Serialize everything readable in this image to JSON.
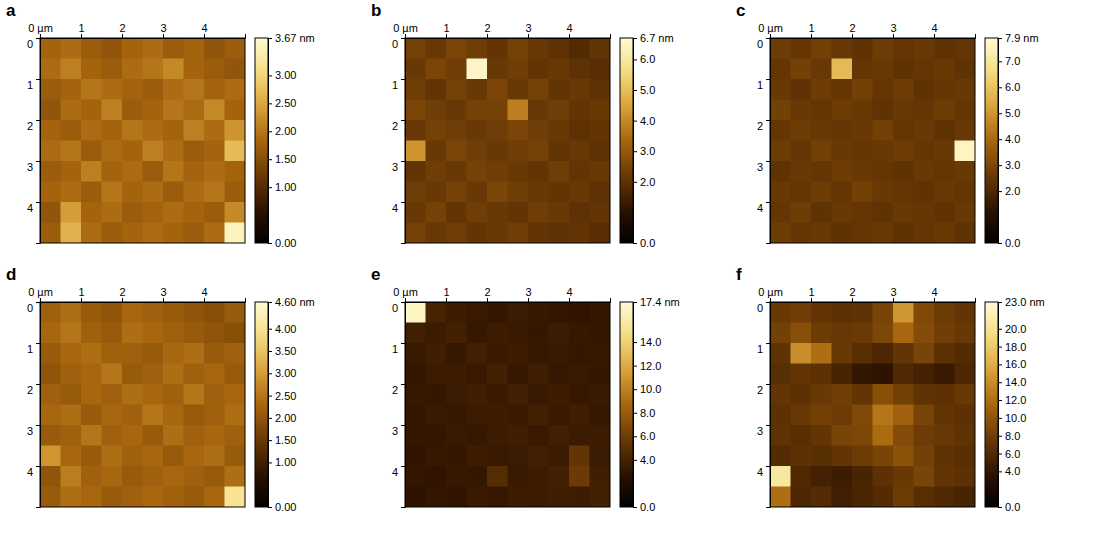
{
  "chart_data": [
    {
      "type": "heatmap",
      "title": "a",
      "xlim": [
        0,
        5
      ],
      "ylim": [
        0,
        5
      ],
      "xticks": [
        {
          "value": 0,
          "label": "0 µm"
        },
        1,
        2,
        3,
        4
      ],
      "yticks": [
        0,
        1,
        2,
        3,
        4
      ],
      "zlim": [
        0,
        3.67
      ],
      "zticks": [
        {
          "value": 0,
          "label": "0.00"
        },
        {
          "value": 1,
          "label": "1.00"
        },
        {
          "value": 1.5,
          "label": "1.50"
        },
        {
          "value": 2,
          "label": "2.00"
        },
        {
          "value": 2.5,
          "label": "2.50"
        },
        {
          "value": 3,
          "label": "3.00"
        },
        {
          "value": 3.67,
          "label": "3.67 nm"
        }
      ],
      "z": [
        [
          1.8,
          1.9,
          1.7,
          1.6,
          1.8,
          1.9,
          1.7,
          1.8,
          1.6,
          1.7
        ],
        [
          1.9,
          2.1,
          1.8,
          1.7,
          1.9,
          2.0,
          2.2,
          1.8,
          1.7,
          1.6
        ],
        [
          1.7,
          1.8,
          2.0,
          1.9,
          1.8,
          1.7,
          1.9,
          2.0,
          1.8,
          1.9
        ],
        [
          1.6,
          1.9,
          1.8,
          2.1,
          1.7,
          1.8,
          2.0,
          1.9,
          2.2,
          1.8
        ],
        [
          1.8,
          1.7,
          1.9,
          1.8,
          2.0,
          1.9,
          1.8,
          2.1,
          1.9,
          2.3
        ],
        [
          1.9,
          2.0,
          1.7,
          1.9,
          1.8,
          2.1,
          1.9,
          1.7,
          1.8,
          2.7
        ],
        [
          1.7,
          1.8,
          2.1,
          1.8,
          1.9,
          1.7,
          2.0,
          1.8,
          1.9,
          1.8
        ],
        [
          1.8,
          1.9,
          1.7,
          2.0,
          1.8,
          1.9,
          1.7,
          1.9,
          2.0,
          1.7
        ],
        [
          1.6,
          2.4,
          1.8,
          1.9,
          1.7,
          1.8,
          1.9,
          1.8,
          1.7,
          2.2
        ],
        [
          1.7,
          2.6,
          1.9,
          1.7,
          1.8,
          1.9,
          1.8,
          1.7,
          1.9,
          3.5
        ]
      ]
    },
    {
      "type": "heatmap",
      "title": "b",
      "xlim": [
        0,
        5
      ],
      "ylim": [
        0,
        5
      ],
      "xticks": [
        {
          "value": 0,
          "label": "0 µm"
        },
        1,
        2,
        3,
        4
      ],
      "yticks": [
        0,
        1,
        2,
        3,
        4
      ],
      "zlim": [
        0,
        6.7
      ],
      "zticks": [
        {
          "value": 0,
          "label": "0.0"
        },
        {
          "value": 2,
          "label": "2.0"
        },
        {
          "value": 3,
          "label": "3.0"
        },
        {
          "value": 4,
          "label": "4.0"
        },
        {
          "value": 5,
          "label": "5.0"
        },
        {
          "value": 6,
          "label": "6.0"
        },
        {
          "value": 6.7,
          "label": "6.7 nm"
        }
      ],
      "z": [
        [
          2.4,
          2.2,
          2.5,
          2.3,
          2.1,
          2.4,
          2.2,
          2.0,
          1.8,
          2.1
        ],
        [
          2.2,
          2.5,
          2.3,
          6.5,
          2.2,
          2.3,
          2.1,
          2.2,
          2.0,
          1.9
        ],
        [
          2.3,
          2.1,
          2.4,
          2.2,
          2.5,
          2.2,
          2.4,
          2.1,
          2.2,
          2.0
        ],
        [
          2.5,
          2.3,
          2.2,
          2.4,
          2.4,
          3.8,
          2.2,
          2.3,
          2.1,
          2.2
        ],
        [
          2.2,
          2.4,
          2.3,
          2.2,
          2.3,
          2.5,
          2.3,
          2.2,
          2.0,
          2.1
        ],
        [
          4.2,
          2.2,
          2.5,
          2.3,
          2.2,
          2.3,
          2.4,
          2.1,
          2.2,
          2.0
        ],
        [
          2.1,
          2.3,
          2.2,
          2.4,
          2.3,
          2.2,
          2.1,
          2.3,
          2.1,
          2.2
        ],
        [
          2.3,
          2.2,
          2.4,
          2.2,
          2.5,
          2.3,
          2.2,
          2.1,
          2.2,
          2.0
        ],
        [
          2.2,
          2.4,
          2.1,
          2.3,
          2.2,
          2.1,
          2.3,
          2.2,
          2.0,
          2.1
        ],
        [
          2.4,
          2.2,
          2.3,
          2.1,
          2.2,
          2.3,
          2.1,
          2.0,
          2.1,
          1.9
        ]
      ]
    },
    {
      "type": "heatmap",
      "title": "c",
      "xlim": [
        0,
        5
      ],
      "ylim": [
        0,
        5
      ],
      "xticks": [
        {
          "value": 0,
          "label": "0 µm"
        },
        1,
        2,
        3,
        4
      ],
      "yticks": [
        0,
        1,
        2,
        3,
        4
      ],
      "zlim": [
        0,
        7.9
      ],
      "zticks": [
        {
          "value": 0,
          "label": "0.0"
        },
        {
          "value": 2,
          "label": "2.0"
        },
        {
          "value": 3,
          "label": "3.0"
        },
        {
          "value": 4,
          "label": "4.0"
        },
        {
          "value": 5,
          "label": "5.0"
        },
        {
          "value": 6,
          "label": "6.0"
        },
        {
          "value": 7,
          "label": "7.0"
        },
        {
          "value": 7.9,
          "label": "7.9 nm"
        }
      ],
      "z": [
        [
          2.7,
          2.5,
          2.8,
          2.6,
          2.4,
          2.7,
          2.5,
          2.6,
          2.4,
          2.5
        ],
        [
          2.5,
          2.8,
          2.6,
          5.8,
          2.5,
          2.6,
          2.4,
          2.5,
          2.6,
          2.4
        ],
        [
          2.6,
          2.4,
          2.7,
          2.5,
          2.8,
          2.5,
          2.7,
          2.4,
          2.5,
          2.6
        ],
        [
          2.8,
          2.6,
          2.5,
          2.7,
          2.6,
          2.4,
          2.6,
          2.5,
          2.7,
          2.5
        ],
        [
          2.5,
          2.7,
          2.6,
          2.5,
          2.6,
          2.8,
          2.5,
          2.6,
          2.4,
          2.6
        ],
        [
          2.7,
          2.5,
          2.8,
          2.6,
          2.5,
          2.6,
          2.7,
          2.5,
          2.6,
          7.6
        ],
        [
          2.4,
          2.6,
          2.5,
          2.7,
          2.6,
          2.5,
          2.4,
          2.6,
          2.5,
          2.6
        ],
        [
          2.6,
          2.5,
          2.7,
          2.5,
          2.8,
          2.6,
          2.5,
          2.4,
          2.6,
          2.5
        ],
        [
          2.5,
          2.7,
          2.4,
          2.6,
          2.5,
          2.4,
          2.6,
          2.5,
          2.4,
          2.6
        ],
        [
          2.7,
          2.5,
          2.6,
          2.4,
          2.5,
          2.6,
          2.4,
          2.5,
          2.6,
          2.4
        ]
      ]
    },
    {
      "type": "heatmap",
      "title": "d",
      "xlim": [
        0,
        5
      ],
      "ylim": [
        0,
        5
      ],
      "xticks": [
        {
          "value": 0,
          "label": "0 µm"
        },
        1,
        2,
        3,
        4
      ],
      "yticks": [
        0,
        1,
        2,
        3,
        4
      ],
      "zlim": [
        0,
        4.6
      ],
      "zticks": [
        {
          "value": 0,
          "label": "0.00"
        },
        {
          "value": 1,
          "label": "1.00"
        },
        {
          "value": 1.5,
          "label": "1.50"
        },
        {
          "value": 2,
          "label": "2.00"
        },
        {
          "value": 2.5,
          "label": "2.50"
        },
        {
          "value": 3,
          "label": "3.00"
        },
        {
          "value": 3.5,
          "label": "3.50"
        },
        {
          "value": 4,
          "label": "4.00"
        },
        {
          "value": 4.6,
          "label": "4.60 nm"
        }
      ],
      "z": [
        [
          2.2,
          2.4,
          2.1,
          2.0,
          2.3,
          2.2,
          2.1,
          2.0,
          1.9,
          2.1
        ],
        [
          2.3,
          2.5,
          2.2,
          2.1,
          2.4,
          2.3,
          2.2,
          2.1,
          2.0,
          1.9
        ],
        [
          2.1,
          2.3,
          2.4,
          2.2,
          2.2,
          2.1,
          2.3,
          2.4,
          2.1,
          2.2
        ],
        [
          2.0,
          2.2,
          2.3,
          2.5,
          2.1,
          2.2,
          2.4,
          2.2,
          2.3,
          2.1
        ],
        [
          2.2,
          2.1,
          2.3,
          2.2,
          2.4,
          2.3,
          2.2,
          2.5,
          2.2,
          2.3
        ],
        [
          2.3,
          2.4,
          2.1,
          2.3,
          2.2,
          2.5,
          2.3,
          2.1,
          2.2,
          2.4
        ],
        [
          2.1,
          2.2,
          2.5,
          2.2,
          2.3,
          2.1,
          2.4,
          2.2,
          2.3,
          2.2
        ],
        [
          2.9,
          2.3,
          2.1,
          2.4,
          2.2,
          2.3,
          2.1,
          2.3,
          2.4,
          2.1
        ],
        [
          2.0,
          2.6,
          2.2,
          2.3,
          2.1,
          2.2,
          2.3,
          2.2,
          2.1,
          2.4
        ],
        [
          2.1,
          2.4,
          2.3,
          2.1,
          2.2,
          2.3,
          2.2,
          2.1,
          2.3,
          4.0
        ]
      ]
    },
    {
      "type": "heatmap",
      "title": "e",
      "xlim": [
        0,
        5
      ],
      "ylim": [
        0,
        5
      ],
      "xticks": [
        {
          "value": 0,
          "label": "0 µm"
        },
        1,
        2,
        3,
        4
      ],
      "yticks": [
        0,
        1,
        2,
        3,
        4
      ],
      "zlim": [
        0,
        17.4
      ],
      "zticks": [
        {
          "value": 0,
          "label": "0.0"
        },
        {
          "value": 4,
          "label": "4.0"
        },
        {
          "value": 6,
          "label": "6.0"
        },
        {
          "value": 8,
          "label": "8.0"
        },
        {
          "value": 10,
          "label": "10.0"
        },
        {
          "value": 12,
          "label": "12.0"
        },
        {
          "value": 14,
          "label": "14.0"
        },
        {
          "value": 17.4,
          "label": "17.4 nm"
        }
      ],
      "z": [
        [
          16.8,
          4.2,
          3.6,
          3.4,
          3.2,
          3.5,
          3.3,
          3.1,
          3.0,
          3.2
        ],
        [
          3.8,
          3.5,
          3.9,
          3.3,
          3.6,
          3.4,
          3.2,
          3.5,
          3.3,
          3.1
        ],
        [
          3.4,
          3.7,
          3.3,
          3.8,
          3.4,
          3.6,
          3.3,
          3.4,
          3.2,
          3.3
        ],
        [
          3.2,
          3.5,
          3.6,
          3.4,
          3.9,
          3.3,
          3.7,
          3.3,
          3.4,
          3.2
        ],
        [
          3.3,
          3.2,
          3.5,
          3.7,
          3.4,
          3.8,
          3.4,
          3.6,
          3.3,
          3.4
        ],
        [
          3.1,
          3.4,
          3.3,
          3.5,
          3.6,
          3.4,
          3.9,
          3.4,
          3.7,
          3.3
        ],
        [
          3.2,
          3.1,
          3.4,
          3.3,
          3.5,
          3.7,
          3.4,
          3.8,
          3.5,
          3.6
        ],
        [
          3.0,
          3.3,
          3.2,
          3.6,
          3.4,
          3.5,
          3.8,
          3.5,
          5.4,
          3.5
        ],
        [
          3.1,
          3.0,
          3.3,
          3.2,
          4.8,
          3.4,
          3.6,
          3.9,
          5.8,
          3.7
        ],
        [
          2.9,
          3.1,
          3.0,
          3.4,
          3.3,
          3.6,
          3.5,
          3.7,
          3.6,
          3.9
        ]
      ]
    },
    {
      "type": "heatmap",
      "title": "f",
      "xlim": [
        0,
        5
      ],
      "ylim": [
        0,
        5
      ],
      "xticks": [
        {
          "value": 0,
          "label": "0 µm"
        },
        1,
        2,
        3,
        4
      ],
      "yticks": [
        0,
        1,
        2,
        3,
        4
      ],
      "zlim": [
        0,
        23.0
      ],
      "zticks": [
        {
          "value": 0,
          "label": "0.0"
        },
        {
          "value": 4,
          "label": "4.0"
        },
        {
          "value": 6,
          "label": "6.0"
        },
        {
          "value": 8,
          "label": "8.0"
        },
        {
          "value": 10,
          "label": "10.0"
        },
        {
          "value": 12,
          "label": "12.0"
        },
        {
          "value": 14,
          "label": "14.0"
        },
        {
          "value": 16,
          "label": "16.0"
        },
        {
          "value": 18,
          "label": "18.0"
        },
        {
          "value": 20,
          "label": "20.0"
        },
        {
          "value": 23.0,
          "label": "23.0 nm"
        }
      ],
      "z": [
        [
          7.5,
          8.0,
          7.2,
          6.8,
          7.0,
          8.5,
          14.5,
          9.0,
          7.8,
          7.2
        ],
        [
          8.2,
          9.5,
          7.8,
          7.4,
          7.6,
          8.8,
          11.5,
          9.2,
          8.0,
          7.5
        ],
        [
          7.0,
          14.0,
          12.0,
          7.5,
          6.5,
          5.8,
          7.2,
          8.5,
          6.8,
          6.2
        ],
        [
          6.5,
          7.2,
          6.8,
          5.5,
          4.2,
          3.8,
          6.0,
          5.2,
          4.5,
          5.8
        ],
        [
          7.2,
          6.8,
          7.5,
          8.0,
          7.2,
          9.5,
          8.2,
          7.0,
          6.8,
          7.5
        ],
        [
          6.8,
          7.5,
          8.2,
          7.8,
          9.0,
          12.5,
          11.0,
          8.5,
          7.2,
          6.8
        ],
        [
          7.0,
          6.5,
          7.2,
          8.5,
          8.8,
          11.8,
          9.2,
          7.8,
          7.5,
          7.0
        ],
        [
          6.2,
          6.8,
          6.5,
          7.2,
          7.8,
          8.5,
          9.8,
          8.2,
          7.0,
          6.5
        ],
        [
          20.5,
          6.0,
          5.2,
          4.8,
          5.5,
          6.8,
          7.5,
          8.5,
          7.2,
          6.8
        ],
        [
          12.0,
          5.8,
          6.2,
          5.0,
          5.6,
          6.2,
          7.8,
          6.5,
          6.0,
          5.5
        ]
      ]
    }
  ]
}
